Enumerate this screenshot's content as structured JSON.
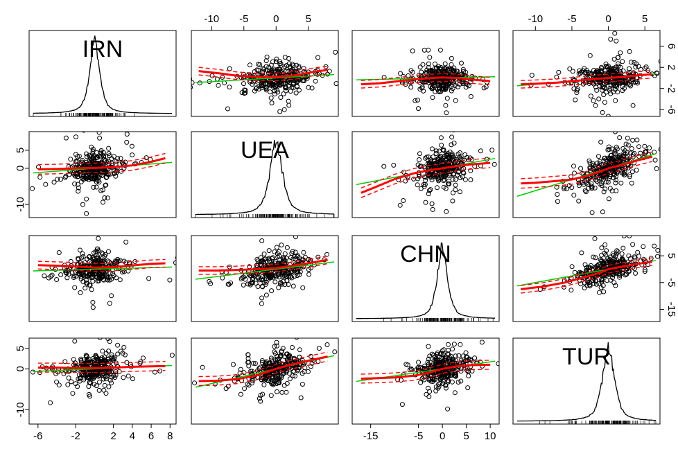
{
  "chart_data": {
    "type": "scatter",
    "title": "",
    "variables": [
      "IRN",
      "UEA",
      "CHN",
      "TUR"
    ],
    "axis_ticks": {
      "IRN": [
        -6,
        -2,
        2,
        4,
        6,
        8
      ],
      "UEA": [
        -10,
        -5,
        0,
        5
      ],
      "CHN": [
        -15,
        -5,
        0,
        5,
        10
      ],
      "TUR": [
        -10,
        -5,
        0,
        5
      ]
    },
    "axis_tick_labels": {
      "IRN": [
        "-6",
        "-2",
        "2",
        "4",
        "6",
        "8"
      ],
      "UEA": [
        "-10",
        "-5",
        "0",
        "5"
      ],
      "CHN": [
        "-15",
        "-5",
        "0",
        "5",
        "10"
      ],
      "TUR": [
        "-10",
        "-5",
        "0",
        "5"
      ]
    },
    "right_axis_ticks": {
      "IRN": [
        -6,
        -2,
        2,
        6
      ],
      "CHN": [
        -15,
        -5,
        5
      ]
    },
    "right_axis_tick_labels": {
      "IRN": [
        "-6",
        "-2",
        "2",
        "6"
      ],
      "CHN": [
        "-15",
        "-5",
        "5"
      ]
    },
    "left_axis_ticks": {
      "UEA": [
        -10,
        0,
        5
      ],
      "TUR": [
        -10,
        0,
        5
      ]
    },
    "left_axis_tick_labels": {
      "UEA": [
        "-10",
        "0",
        "5"
      ],
      "TUR": [
        "-10",
        "0",
        "5"
      ]
    },
    "ranges": {
      "IRN": [
        -6.5,
        8.2
      ],
      "UEA": [
        -12.5,
        9
      ],
      "CHN": [
        -18,
        11
      ],
      "TUR": [
        -12.5,
        6.5
      ]
    },
    "diagonal": "density",
    "regression_color": "#00cc00",
    "smoother_color": "#ff0000",
    "point_color": "#000000",
    "panels": [
      {
        "row": 0,
        "col": 1,
        "slope": 0.07,
        "intercept": 0,
        "smooth": [
          [
            -12,
            1.3
          ],
          [
            -9,
            0.9
          ],
          [
            -6,
            0.4
          ],
          [
            -3,
            0.2
          ],
          [
            0,
            0.2
          ],
          [
            3,
            0.5
          ],
          [
            6,
            1.2
          ],
          [
            8,
            1.5
          ]
        ]
      },
      {
        "row": 0,
        "col": 2,
        "slope": 0.02,
        "intercept": 0,
        "smooth": [
          [
            -17,
            -1.2
          ],
          [
            -13,
            -1.0
          ],
          [
            -9,
            -0.6
          ],
          [
            -5,
            -0.2
          ],
          [
            -2,
            0
          ],
          [
            0,
            0.1
          ],
          [
            3,
            0
          ],
          [
            6,
            -0.3
          ],
          [
            10,
            -0.6
          ]
        ]
      },
      {
        "row": 0,
        "col": 3,
        "slope": 0.12,
        "intercept": 0,
        "smooth": [
          [
            -12,
            -1.2
          ],
          [
            -10,
            -1.1
          ],
          [
            -7,
            -0.9
          ],
          [
            -4,
            -0.5
          ],
          [
            -2,
            -0.2
          ],
          [
            0,
            0
          ],
          [
            2,
            0.2
          ],
          [
            4,
            0.5
          ],
          [
            6,
            0.7
          ]
        ]
      },
      {
        "row": 1,
        "col": 0,
        "slope": 0.2,
        "intercept": 0,
        "smooth": [
          [
            -6,
            -0.3
          ],
          [
            -4,
            -0.2
          ],
          [
            -2,
            0
          ],
          [
            0,
            0.1
          ],
          [
            2,
            0.3
          ],
          [
            4,
            0.8
          ],
          [
            6,
            1.8
          ],
          [
            7.5,
            2.8
          ]
        ]
      },
      {
        "row": 1,
        "col": 2,
        "slope": 0.25,
        "intercept": 0,
        "smooth": [
          [
            -17,
            -6.8
          ],
          [
            -14,
            -5.2
          ],
          [
            -10,
            -3.0
          ],
          [
            -6,
            -1.4
          ],
          [
            -3,
            -0.6
          ],
          [
            0,
            0
          ],
          [
            3,
            0.6
          ],
          [
            6,
            1.1
          ],
          [
            10,
            1.5
          ]
        ]
      },
      {
        "row": 1,
        "col": 3,
        "slope": 0.62,
        "intercept": 0,
        "smooth": [
          [
            -12,
            -4.2
          ],
          [
            -10,
            -4.0
          ],
          [
            -7,
            -3.5
          ],
          [
            -5,
            -3.1
          ],
          [
            -3,
            -2.2
          ],
          [
            -1,
            -0.8
          ],
          [
            0,
            0
          ],
          [
            2,
            1.0
          ],
          [
            4,
            2.2
          ],
          [
            6,
            3.2
          ]
        ]
      },
      {
        "row": 2,
        "col": 0,
        "slope": 0.1,
        "intercept": 0,
        "smooth": [
          [
            -6,
            1.5
          ],
          [
            -3,
            1.2
          ],
          [
            -1,
            0.8
          ],
          [
            0,
            0.6
          ],
          [
            2,
            0.8
          ],
          [
            4,
            1.4
          ],
          [
            6,
            2.0
          ],
          [
            7.5,
            2.2
          ]
        ]
      },
      {
        "row": 2,
        "col": 1,
        "slope": 0.3,
        "intercept": 0,
        "smooth": [
          [
            -12,
            -0.5
          ],
          [
            -9,
            -0.5
          ],
          [
            -6,
            -0.3
          ],
          [
            -3,
            0
          ],
          [
            0,
            0.4
          ],
          [
            3,
            1.5
          ],
          [
            6,
            2.6
          ],
          [
            8,
            3.5
          ]
        ]
      },
      {
        "row": 2,
        "col": 3,
        "slope": 0.5,
        "intercept": 0,
        "smooth": [
          [
            -12,
            -7.5
          ],
          [
            -9,
            -6.5
          ],
          [
            -6,
            -5.0
          ],
          [
            -3,
            -2.8
          ],
          [
            -1,
            -1.2
          ],
          [
            0,
            0
          ],
          [
            2,
            1.0
          ],
          [
            4,
            2.0
          ],
          [
            6,
            2.8
          ]
        ]
      },
      {
        "row": 3,
        "col": 0,
        "slope": 0.1,
        "intercept": 0,
        "smooth": [
          [
            -6,
            0.3
          ],
          [
            -4,
            0.3
          ],
          [
            -2,
            0.2
          ],
          [
            0,
            0.2
          ],
          [
            2,
            0.3
          ],
          [
            4,
            0.5
          ],
          [
            6,
            0.6
          ],
          [
            7.5,
            0.7
          ]
        ]
      },
      {
        "row": 3,
        "col": 1,
        "slope": 0.36,
        "intercept": 0,
        "smooth": [
          [
            -12,
            -3.0
          ],
          [
            -9,
            -2.9
          ],
          [
            -6,
            -2.5
          ],
          [
            -3,
            -1.6
          ],
          [
            0,
            0
          ],
          [
            2,
            0.9
          ],
          [
            5,
            2.0
          ],
          [
            8,
            3.0
          ]
        ]
      },
      {
        "row": 3,
        "col": 2,
        "slope": 0.17,
        "intercept": 0,
        "smooth": [
          [
            -17,
            -2.4
          ],
          [
            -14,
            -2.3
          ],
          [
            -10,
            -2.1
          ],
          [
            -6,
            -1.7
          ],
          [
            -3,
            -1.0
          ],
          [
            0,
            0
          ],
          [
            3,
            0.6
          ],
          [
            6,
            0.9
          ],
          [
            10,
            1.0
          ]
        ]
      }
    ]
  }
}
